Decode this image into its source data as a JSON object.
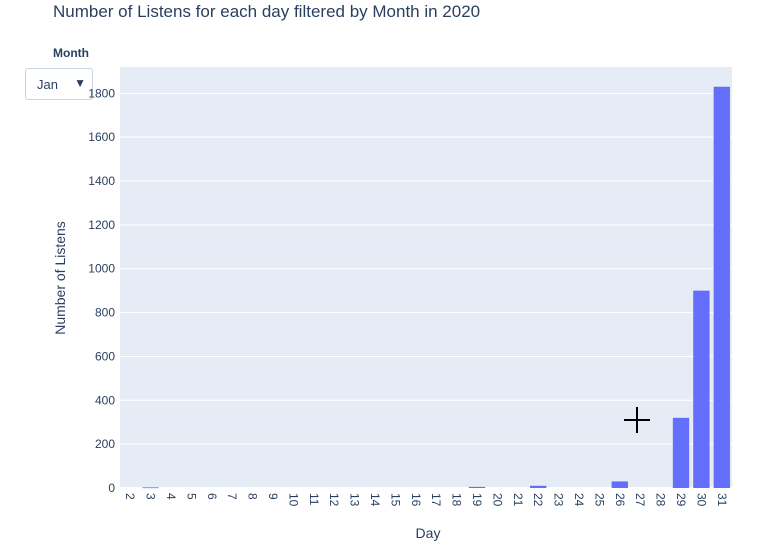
{
  "chart_data": {
    "type": "bar",
    "title": "Number of Listens for each day filtered by Month in 2020",
    "xlabel": "Day",
    "ylabel": "Number of Listens",
    "categories": [
      "2",
      "3",
      "4",
      "5",
      "6",
      "7",
      "8",
      "9",
      "10",
      "11",
      "12",
      "13",
      "14",
      "15",
      "16",
      "17",
      "18",
      "19",
      "20",
      "21",
      "22",
      "23",
      "24",
      "25",
      "26",
      "27",
      "28",
      "29",
      "30",
      "31"
    ],
    "values": [
      0,
      3,
      0,
      0,
      0,
      0,
      0,
      0,
      0,
      0,
      0,
      0,
      0,
      0,
      0,
      0,
      0,
      5,
      0,
      0,
      10,
      0,
      0,
      0,
      30,
      0,
      0,
      320,
      900,
      1830
    ],
    "ylim": [
      0,
      1920
    ],
    "yticks": [
      0,
      200,
      400,
      600,
      800,
      1000,
      1200,
      1400,
      1600,
      1800
    ],
    "grid": true,
    "bar_color": "#636efa",
    "plot_bg": "#e5ecf6"
  },
  "dropdown": {
    "label": "Month",
    "selected": "Jan"
  },
  "cursor": {
    "icon": "crosshair-icon"
  }
}
